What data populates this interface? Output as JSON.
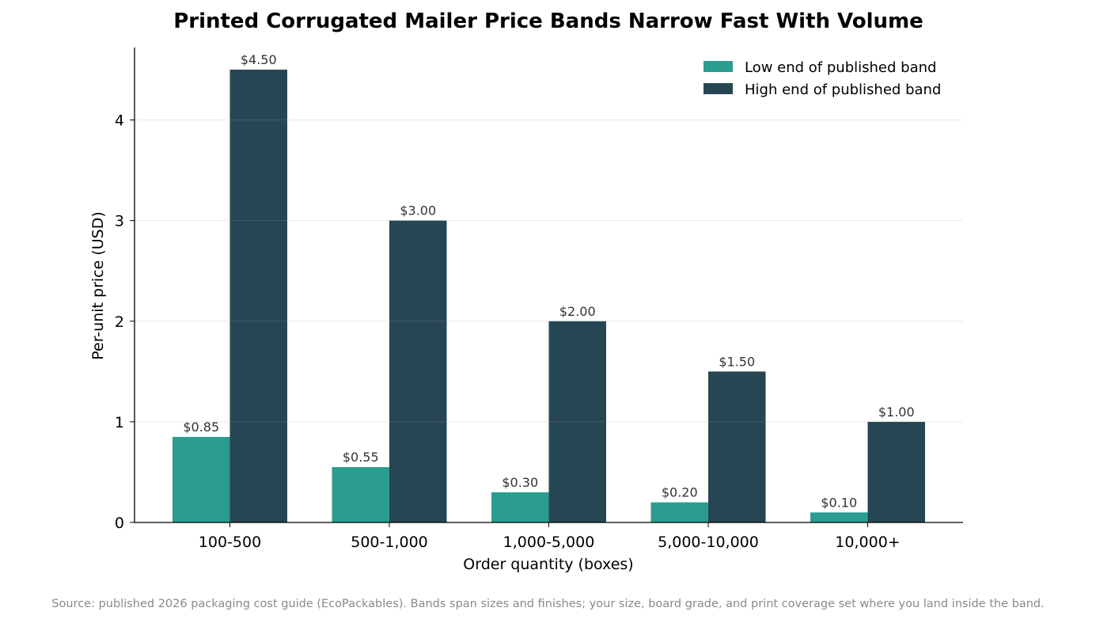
{
  "chart_data": {
    "type": "bar",
    "title": "Printed Corrugated Mailer Price Bands Narrow Fast With Volume",
    "xlabel": "Order quantity (boxes)",
    "ylabel": "Per-unit price (USD)",
    "categories": [
      "100-500",
      "500-1,000",
      "1,000-5,000",
      "5,000-10,000",
      "10,000+"
    ],
    "series": [
      {
        "name": "Low end of published band",
        "color": "#2a9d8f",
        "values": [
          0.85,
          0.55,
          0.3,
          0.2,
          0.1
        ],
        "labels": [
          "$0.85",
          "$0.55",
          "$0.30",
          "$0.20",
          "$0.10"
        ]
      },
      {
        "name": "High end of published band",
        "color": "#264653",
        "values": [
          4.5,
          3.0,
          2.0,
          1.5,
          1.0
        ],
        "labels": [
          "$4.50",
          "$3.00",
          "$2.00",
          "$1.50",
          "$1.00"
        ]
      }
    ],
    "ylim": [
      0,
      4.72
    ],
    "yticks": [
      0,
      1,
      2,
      3,
      4
    ],
    "grid": "horizontal",
    "legend_position": "top-right"
  },
  "source_note": "Source: published 2026 packaging cost guide (EcoPackables). Bands span sizes and finishes; your size, board grade, and print coverage set where you land inside the band."
}
